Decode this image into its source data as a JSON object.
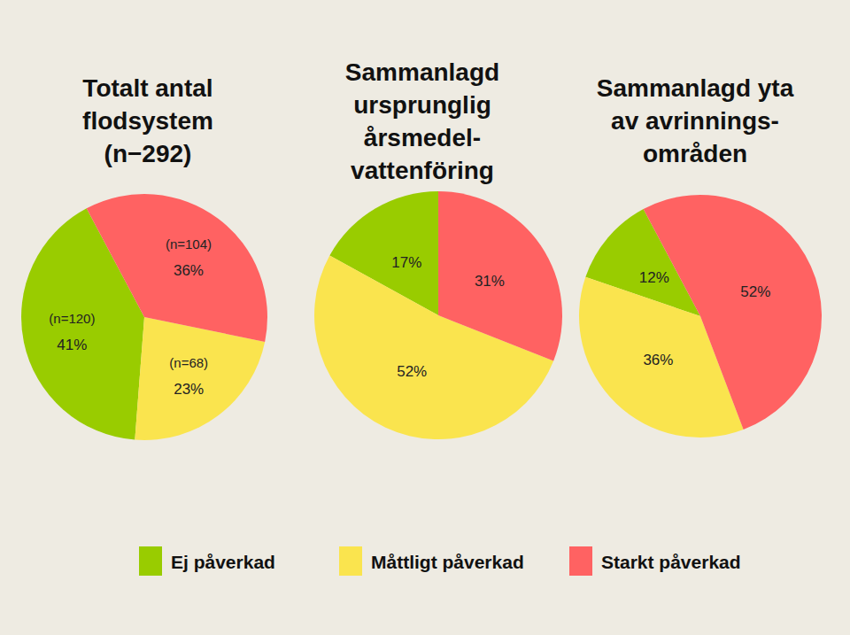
{
  "chart_data": [
    {
      "type": "pie",
      "title": [
        "Totalt antal",
        "flodsystem",
        "(n−292)"
      ],
      "categories": [
        "Ej påverkad",
        "Måttligt påverkad",
        "Starkt påverkad"
      ],
      "values": [
        41,
        23,
        36
      ],
      "value_labels": [
        "41%",
        "23%",
        "36%"
      ],
      "count_labels": [
        "(n=120)",
        "(n=68)",
        "(n=104)"
      ],
      "colors": [
        "#99cc00",
        "#fae44e",
        "#ff6262"
      ],
      "data_labels": true,
      "legend": "bottom"
    },
    {
      "type": "pie",
      "title": [
        "Sammanlagd",
        "ursprunglig",
        "årsmedel-",
        "vattenföring"
      ],
      "categories": [
        "Ej påverkad",
        "Måttligt påverkad",
        "Starkt påverkad"
      ],
      "values": [
        17,
        52,
        31
      ],
      "value_labels": [
        "17%",
        "52%",
        "31%"
      ],
      "colors": [
        "#99cc00",
        "#fae44e",
        "#ff6262"
      ],
      "data_labels": true
    },
    {
      "type": "pie",
      "title": [
        "Sammanlagd yta",
        "av avrinnings-",
        "områden"
      ],
      "categories": [
        "Ej påverkad",
        "Måttligt påverkad",
        "Starkt påverkad"
      ],
      "values": [
        12,
        36,
        52
      ],
      "value_labels": [
        "12%",
        "36%",
        "52%"
      ],
      "colors": [
        "#99cc00",
        "#fae44e",
        "#ff6262"
      ],
      "data_labels": true
    }
  ]
}
